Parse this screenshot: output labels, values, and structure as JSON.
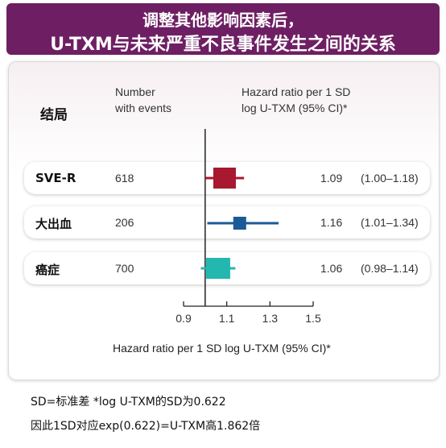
{
  "banner": {
    "line1": "调整其他影响因素后，",
    "line2": "U-TXM与未来严重不良事件发生之间的关系"
  },
  "headers": {
    "outcome": "结局",
    "events_line1": "Number",
    "events_line2": "with events",
    "hr_line1": "Hazard ratio per 1 SD",
    "hr_line2": "log U-TXM (95% CI)*"
  },
  "rows": [
    {
      "label": "SVE-R",
      "events": "618",
      "hr_text": "1.09",
      "ci_text": "(1.00–1.18)"
    },
    {
      "label": "大出血",
      "events": "206",
      "hr_text": "1.16",
      "ci_text": "(1.01–1.34)"
    },
    {
      "label": "癌症",
      "events": "700",
      "hr_text": "1.06",
      "ci_text": "(0.98–1.14)"
    }
  ],
  "footnotes": {
    "line1": "SD=标准差 *log U-TXM的SD为0.622",
    "line2": "因此1SD对应exp(0.622)=U-TXM高1.862倍"
  },
  "chart_data": {
    "type": "forest",
    "xlabel": "Hazard ratio per 1 SD log U-TXM (95% CI)*",
    "xlim": [
      0.9,
      1.5
    ],
    "xticks": [
      "0.9",
      "1.1",
      "1.3",
      "1.5"
    ],
    "reference_line": 1.0,
    "series": [
      {
        "name": "SVE-R",
        "hr": 1.09,
        "lower": 1.0,
        "upper": 1.18,
        "color": "#a8182e"
      },
      {
        "name": "大出血",
        "hr": 1.16,
        "lower": 1.01,
        "upper": 1.34,
        "color": "#1a5a96"
      },
      {
        "name": "癌症",
        "hr": 1.06,
        "lower": 0.98,
        "upper": 1.14,
        "color": "#23b7b0"
      }
    ]
  }
}
